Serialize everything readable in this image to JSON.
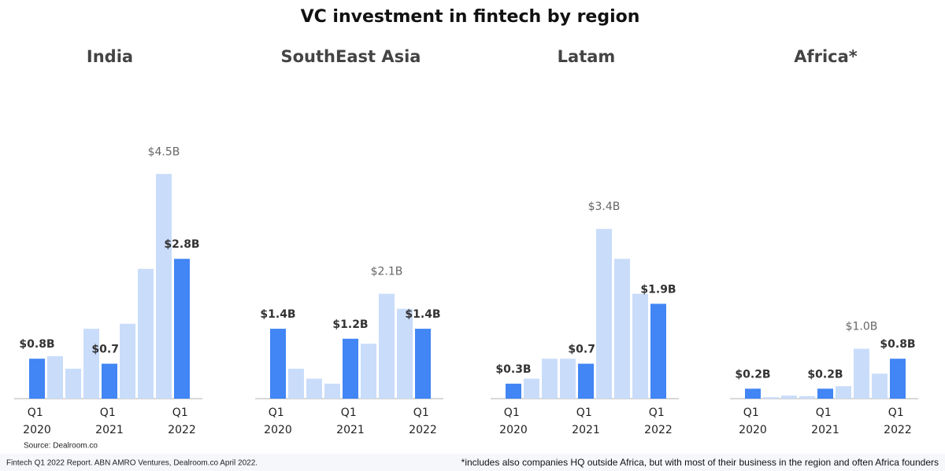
{
  "chart_data": [
    {
      "type": "bar",
      "title": "India",
      "ylim": [
        0,
        5
      ],
      "categories": [
        "Q1 2020",
        null,
        null,
        null,
        "Q1 2021",
        null,
        null,
        null,
        "Q1 2022"
      ],
      "values": [
        0.8,
        0.85,
        0.6,
        1.4,
        0.7,
        1.5,
        2.6,
        4.5,
        2.8
      ],
      "value_labels": [
        "$0.8B",
        null,
        null,
        null,
        "$0.7B",
        null,
        null,
        "$4.5B",
        "$2.8B"
      ],
      "colors": [
        "#4285f4",
        "#c9dcfa",
        "#c9dcfa",
        "#c9dcfa",
        "#4285f4",
        "#c9dcfa",
        "#c9dcfa",
        "#c9dcfa",
        "#4285f4"
      ]
    },
    {
      "type": "bar",
      "title": "SouthEast Asia",
      "ylim": [
        0,
        5
      ],
      "categories": [
        "Q1 2020",
        null,
        null,
        null,
        "Q1 2021",
        null,
        null,
        null,
        "Q1 2022"
      ],
      "values": [
        1.4,
        0.6,
        0.4,
        0.3,
        1.2,
        1.1,
        2.1,
        1.8,
        1.4
      ],
      "value_labels": [
        "$1.4B",
        null,
        null,
        null,
        "$1.2B",
        null,
        "$2.1B",
        null,
        "$1.4B"
      ],
      "colors": [
        "#4285f4",
        "#c9dcfa",
        "#c9dcfa",
        "#c9dcfa",
        "#4285f4",
        "#c9dcfa",
        "#c9dcfa",
        "#c9dcfa",
        "#4285f4"
      ]
    },
    {
      "type": "bar",
      "title": "Latam",
      "ylim": [
        0,
        5
      ],
      "categories": [
        "Q1 2020",
        null,
        null,
        null,
        "Q1 2021",
        null,
        null,
        null,
        "Q1 2022"
      ],
      "values": [
        0.3,
        0.4,
        0.8,
        0.8,
        0.7,
        3.4,
        2.8,
        2.1,
        1.9
      ],
      "value_labels": [
        "$0.3B",
        null,
        null,
        null,
        "$0.7B",
        "$3.4B",
        null,
        null,
        "$1.9B"
      ],
      "colors": [
        "#4285f4",
        "#c9dcfa",
        "#c9dcfa",
        "#c9dcfa",
        "#4285f4",
        "#c9dcfa",
        "#c9dcfa",
        "#c9dcfa",
        "#4285f4"
      ]
    },
    {
      "type": "bar",
      "title": "Africa*",
      "ylim": [
        0,
        5
      ],
      "categories": [
        "Q1 2020",
        null,
        null,
        null,
        "Q1 2021",
        null,
        null,
        null,
        "Q1 2022"
      ],
      "values": [
        0.2,
        0.03,
        0.06,
        0.05,
        0.2,
        0.25,
        1.0,
        0.5,
        0.8
      ],
      "value_labels": [
        "$0.2B",
        null,
        null,
        null,
        "$0.2B",
        null,
        "$1.0B",
        null,
        "$0.8B"
      ],
      "colors": [
        "#4285f4",
        "#c9dcfa",
        "#c9dcfa",
        "#c9dcfa",
        "#4285f4",
        "#c9dcfa",
        "#c9dcfa",
        "#c9dcfa",
        "#4285f4"
      ]
    }
  ],
  "title": "VC investment in fintech by region",
  "highlight_color": "#4285f4",
  "source": "Source: Dealroom.co",
  "footer": "Fintech Q1 2022 Report. ABN AMRO Ventures, Dealroom.co April 2022.",
  "footnote": "*includes also companies HQ outside Africa, but with most of their business in the region and often Africa founders"
}
